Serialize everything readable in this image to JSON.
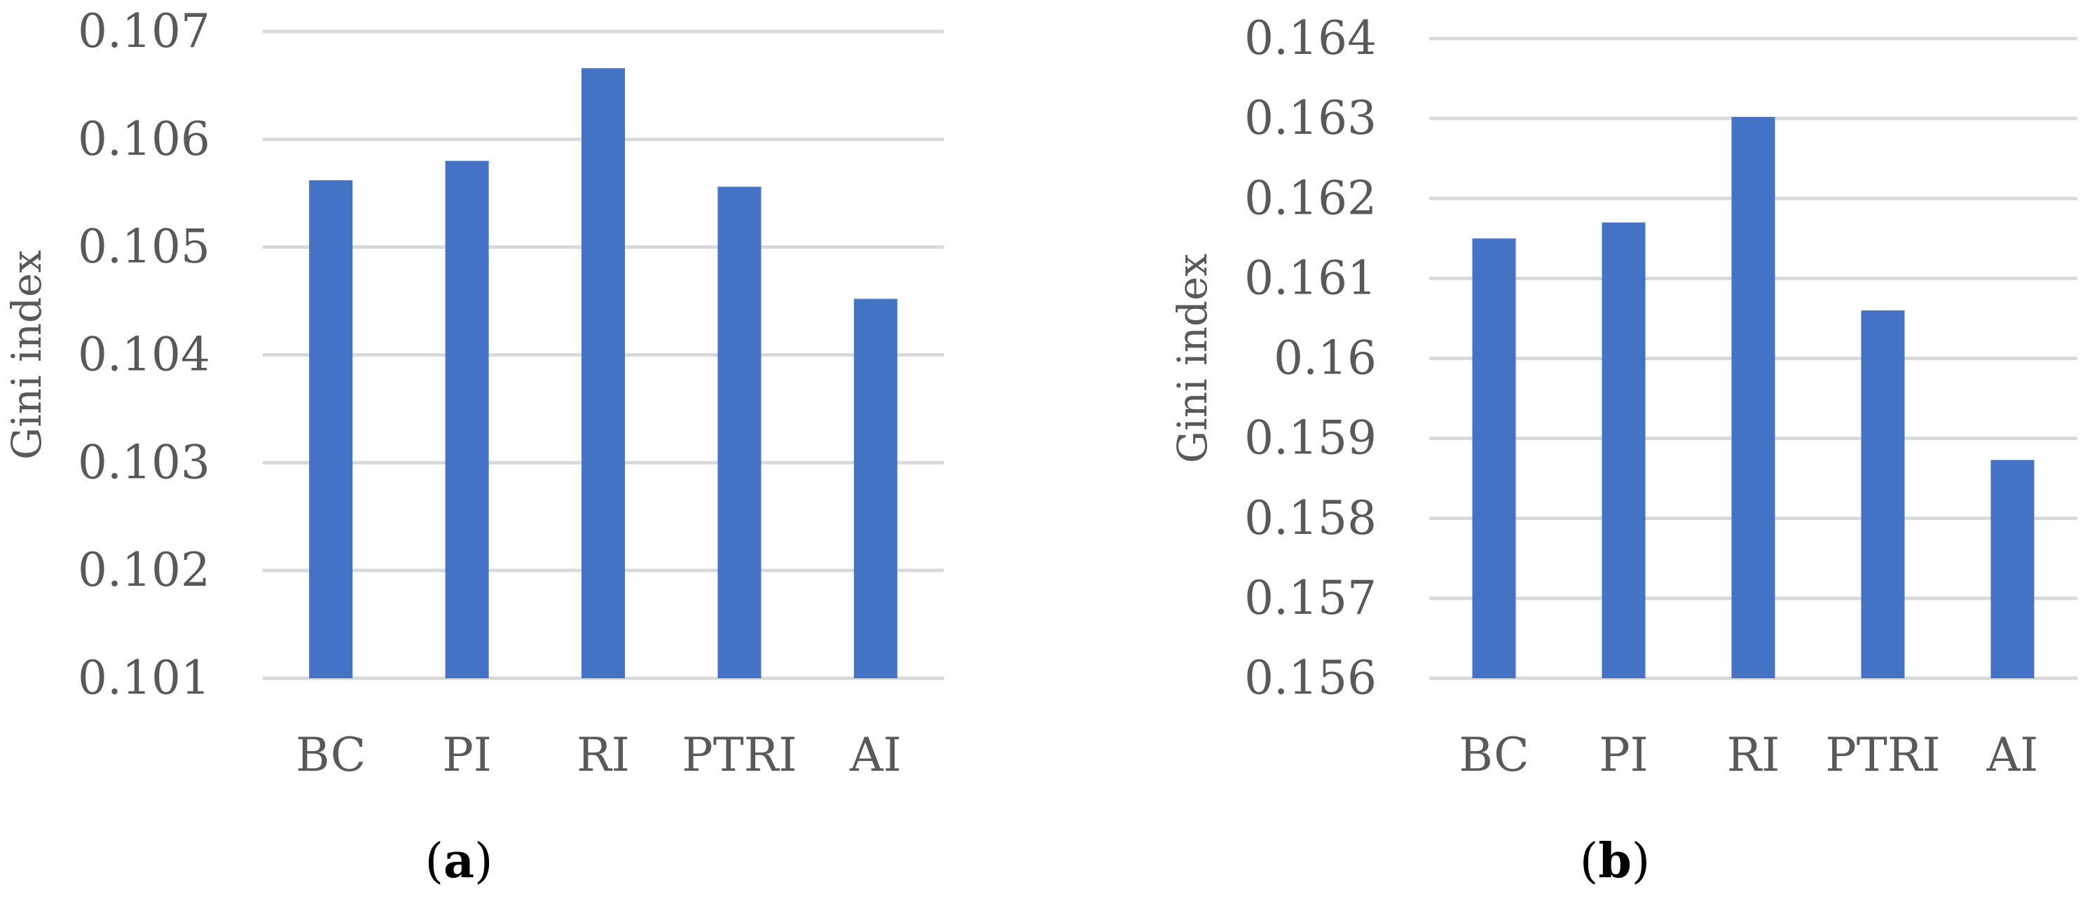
{
  "colors": {
    "bar": "#4472c4",
    "grid": "#d9d9d9",
    "tick_text": "#595959",
    "panel_text": "#000000"
  },
  "chart_data": [
    {
      "type": "bar",
      "panel": "(a)",
      "panel_paren_open": "(",
      "panel_letter": "a",
      "panel_paren_close": ")",
      "categories": [
        "BC",
        "PI",
        "RI",
        "PTRI",
        "AI"
      ],
      "values": [
        0.10562,
        0.1058,
        0.10666,
        0.10556,
        0.10452
      ],
      "ylabel": "Gini index",
      "ylim": [
        0.101,
        0.107
      ],
      "yticks": [
        "0.101",
        "0.102",
        "0.103",
        "0.104",
        "0.105",
        "0.106",
        "0.107"
      ],
      "grid": true,
      "legend": "none"
    },
    {
      "type": "bar",
      "panel": "(b)",
      "panel_paren_open": "(",
      "panel_letter": "b",
      "panel_paren_close": ")",
      "categories": [
        "BC",
        "PI",
        "RI",
        "PTRI",
        "AI"
      ],
      "values": [
        0.1615,
        0.1617,
        0.16302,
        0.1606,
        0.15873
      ],
      "ylabel": "Gini index",
      "ylim": [
        0.156,
        0.164
      ],
      "yticks": [
        "0.156",
        "0.157",
        "0.158",
        "0.159",
        "0.16",
        "0.161",
        "0.162",
        "0.163",
        "0.164"
      ],
      "grid": true,
      "legend": "none"
    }
  ]
}
